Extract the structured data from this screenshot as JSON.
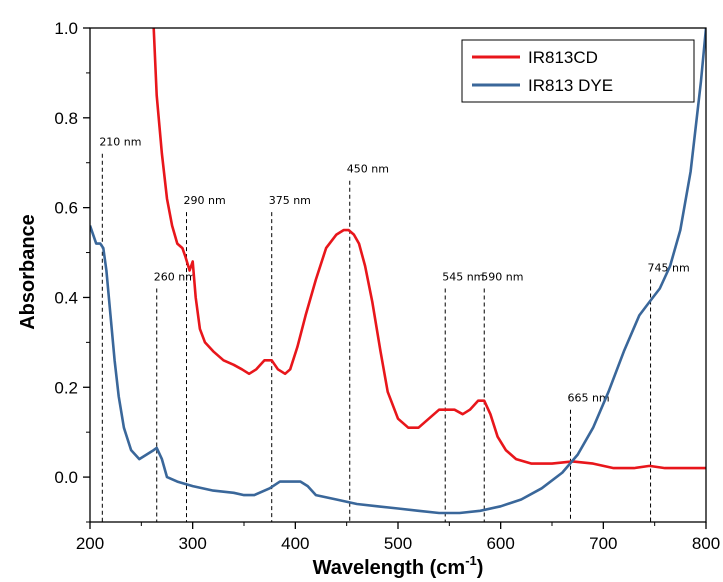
{
  "chart_data": {
    "type": "line",
    "xlabel": "Wavelength (cm",
    "xlabel_sup": "-1",
    "xlabel_close": ")",
    "ylabel": "Absorbance",
    "xlim": [
      200,
      800
    ],
    "ylim": [
      -0.1,
      1.0
    ],
    "x_ticks": [
      200,
      300,
      400,
      500,
      600,
      700,
      800
    ],
    "x_tick_labels": [
      "200",
      "300",
      "400",
      "500",
      "600",
      "700",
      "800"
    ],
    "y_ticks": [
      0.0,
      0.2,
      0.4,
      0.6,
      0.8,
      1.0
    ],
    "y_tick_labels": [
      "0.0",
      "0.2",
      "0.4",
      "0.6",
      "0.8",
      "1.0"
    ],
    "legend_position": "top-right",
    "series": [
      {
        "name": "IR813CD",
        "color": "#e8161b",
        "x": [
          262,
          265,
          270,
          275,
          280,
          285,
          290,
          293,
          297,
          300,
          303,
          307,
          312,
          320,
          330,
          340,
          348,
          355,
          362,
          370,
          377,
          383,
          390,
          395,
          402,
          410,
          420,
          430,
          440,
          447,
          452,
          457,
          462,
          468,
          475,
          483,
          490,
          500,
          510,
          520,
          530,
          540,
          548,
          555,
          563,
          570,
          578,
          584,
          590,
          597,
          605,
          615,
          630,
          650,
          670,
          690,
          710,
          730,
          745,
          760,
          775,
          790,
          800
        ],
        "y": [
          1.0,
          0.85,
          0.72,
          0.62,
          0.56,
          0.52,
          0.51,
          0.49,
          0.46,
          0.48,
          0.4,
          0.33,
          0.3,
          0.28,
          0.26,
          0.25,
          0.24,
          0.23,
          0.24,
          0.26,
          0.26,
          0.24,
          0.23,
          0.24,
          0.29,
          0.36,
          0.44,
          0.51,
          0.54,
          0.55,
          0.55,
          0.54,
          0.52,
          0.47,
          0.39,
          0.28,
          0.19,
          0.13,
          0.11,
          0.11,
          0.13,
          0.15,
          0.15,
          0.15,
          0.14,
          0.15,
          0.17,
          0.17,
          0.14,
          0.09,
          0.06,
          0.04,
          0.03,
          0.03,
          0.035,
          0.03,
          0.02,
          0.02,
          0.025,
          0.02,
          0.02,
          0.02,
          0.02
        ]
      },
      {
        "name": "IR813 DYE",
        "color": "#3a679a",
        "x": [
          200,
          203,
          206,
          210,
          213,
          216,
          220,
          224,
          228,
          233,
          240,
          248,
          255,
          262,
          265,
          270,
          275,
          285,
          300,
          320,
          340,
          350,
          360,
          375,
          385,
          395,
          405,
          412,
          420,
          440,
          460,
          480,
          500,
          520,
          540,
          560,
          580,
          600,
          620,
          640,
          660,
          675,
          690,
          705,
          720,
          735,
          745,
          755,
          765,
          775,
          785,
          795,
          800
        ],
        "y": [
          0.56,
          0.54,
          0.52,
          0.52,
          0.51,
          0.46,
          0.36,
          0.26,
          0.18,
          0.11,
          0.06,
          0.04,
          0.05,
          0.06,
          0.065,
          0.04,
          0.0,
          -0.01,
          -0.02,
          -0.03,
          -0.035,
          -0.04,
          -0.04,
          -0.025,
          -0.01,
          -0.01,
          -0.01,
          -0.02,
          -0.04,
          -0.05,
          -0.06,
          -0.065,
          -0.07,
          -0.075,
          -0.08,
          -0.08,
          -0.075,
          -0.065,
          -0.05,
          -0.025,
          0.01,
          0.05,
          0.11,
          0.19,
          0.28,
          0.36,
          0.39,
          0.42,
          0.47,
          0.55,
          0.68,
          0.88,
          1.0
        ]
      }
    ],
    "annotations": [
      {
        "x": 212,
        "text": "210 nm",
        "top": 0.72
      },
      {
        "x": 265,
        "text": "260 nm",
        "top": 0.42
      },
      {
        "x": 294,
        "text": "290 nm",
        "top": 0.59
      },
      {
        "x": 377,
        "text": "375 nm",
        "top": 0.59
      },
      {
        "x": 453,
        "text": "450 nm",
        "top": 0.66
      },
      {
        "x": 546,
        "text": "545 nm",
        "top": 0.42
      },
      {
        "x": 584,
        "text": "590 nm",
        "top": 0.42
      },
      {
        "x": 668,
        "text": "665 nm",
        "top": 0.15
      },
      {
        "x": 746,
        "text": "745 nm",
        "top": 0.44
      }
    ]
  }
}
